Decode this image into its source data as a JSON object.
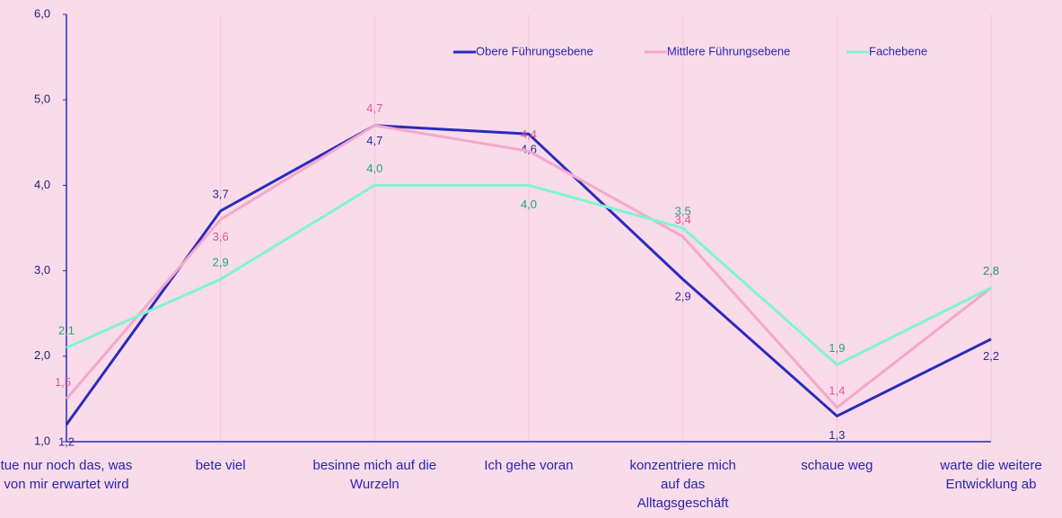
{
  "chart_data": {
    "type": "line",
    "categories": [
      "tue nur noch das, was von mir erwartet wird",
      "bete viel",
      "besinne mich auf die Wurzeln",
      "Ich gehe voran",
      "konzentriere mich auf das Alltagsgeschäft",
      "schaue weg",
      "warte die weitere Entwicklung ab"
    ],
    "series": [
      {
        "name": "Obere Führungsebene",
        "color": "#2b2bbd",
        "label_color": "#2b2b9a",
        "values": [
          1.2,
          3.7,
          4.7,
          4.6,
          2.9,
          1.3,
          2.2
        ],
        "value_labels": [
          "1,2",
          "3,7",
          "4,7",
          "4,6",
          "2,9",
          "1,3",
          "2,2"
        ]
      },
      {
        "name": "Mittlere Führungsebene",
        "color": "#f4a8cc",
        "label_color": "#e0559a",
        "values": [
          1.5,
          3.6,
          4.7,
          4.4,
          3.4,
          1.4,
          2.8
        ],
        "value_labels": [
          "1,5",
          "3,6",
          "4,7",
          "4,4",
          "3,4",
          "1,4",
          "2,8"
        ]
      },
      {
        "name": "Fachebene",
        "color": "#7ff5d0",
        "label_color": "#1aa872",
        "values": [
          2.1,
          2.9,
          4.0,
          4.0,
          3.5,
          1.9,
          2.8
        ],
        "value_labels": [
          "2,1",
          "2,9",
          "4,0",
          "4,0",
          "3,5",
          "1,9",
          "2,8"
        ]
      }
    ],
    "ylim": [
      1,
      6
    ],
    "yticks": [
      {
        "value": 1,
        "label": "1,0"
      },
      {
        "value": 2,
        "label": "2,0"
      },
      {
        "value": 3,
        "label": "3,0"
      },
      {
        "value": 4,
        "label": "4,0"
      },
      {
        "value": 5,
        "label": "5,0"
      },
      {
        "value": 6,
        "label": "6,0"
      }
    ],
    "grid": true,
    "legend": "top-right"
  }
}
